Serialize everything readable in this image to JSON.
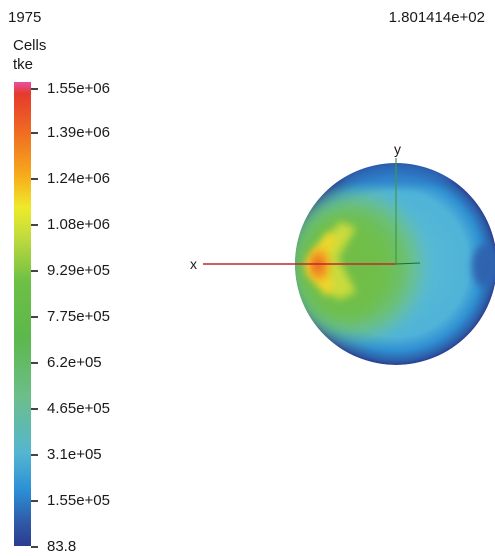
{
  "header": {
    "step": "1975",
    "time": "1.801414e+02"
  },
  "legend": {
    "entity": "Cells",
    "variable": "tke",
    "ticks": [
      "1.55e+06",
      "1.39e+06",
      "1.24e+06",
      "1.08e+06",
      "9.29e+05",
      "7.75e+05",
      "6.2e+05",
      "4.65e+05",
      "3.1e+05",
      "1.55e+05",
      "83.8"
    ],
    "colormap": [
      "#e84fa6",
      "#e53a2c",
      "#ef6623",
      "#f7aa1b",
      "#eeea2a",
      "#c5dc3c",
      "#6dc045",
      "#5cb84c",
      "#6cbe8a",
      "#54b6d0",
      "#2b8fd6",
      "#2f59a8",
      "#2b3c8f"
    ]
  },
  "axes": {
    "x_label": "x",
    "y_label": "y",
    "x_color": "#c0282d",
    "y_color": "#3f9a4a",
    "z_color": "#1f6b2e"
  }
}
